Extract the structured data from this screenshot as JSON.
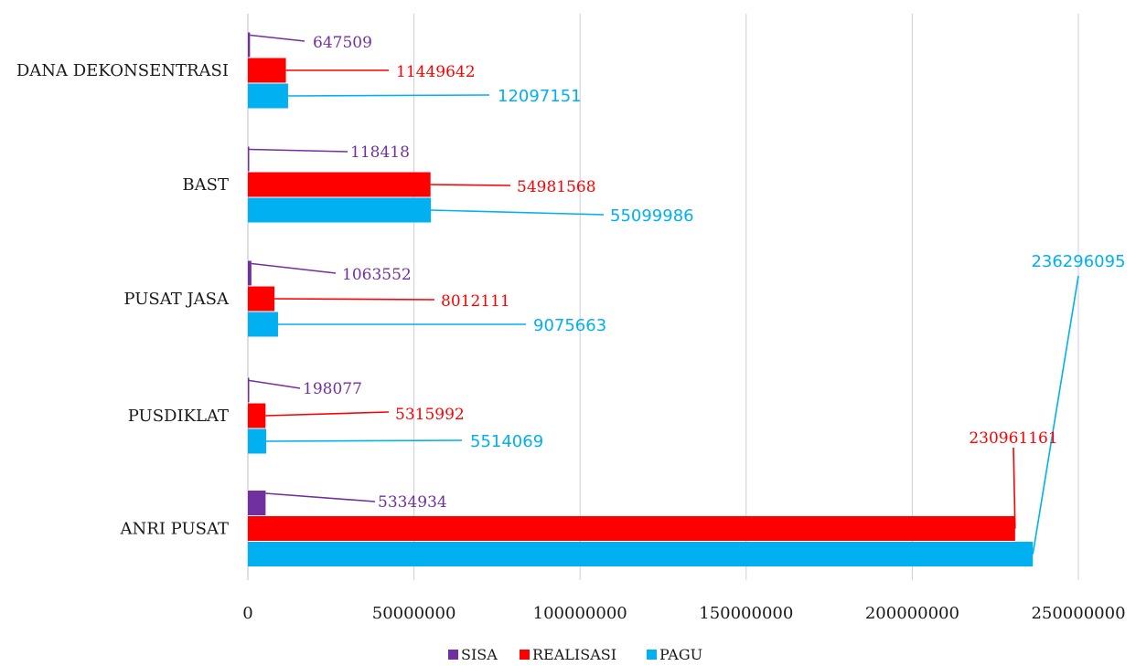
{
  "chart_data": {
    "type": "bar",
    "orientation": "horizontal",
    "categories": [
      "ANRI PUSAT",
      "PUSDIKLAT",
      "PUSAT JASA",
      "BAST",
      "DANA DEKONSENTRASI"
    ],
    "series": [
      {
        "name": "SISA",
        "color": "#7030A0",
        "values": [
          5334934,
          198077,
          1063552,
          118418,
          647509
        ],
        "labels": [
          "5334934",
          "198077",
          "1063552",
          "118418",
          "647509"
        ]
      },
      {
        "name": "REALISASI",
        "color": "#FF0000",
        "values": [
          230961161,
          5315992,
          8012111,
          54981568,
          11449642
        ],
        "labels": [
          "230961161",
          "5315992",
          "8012111",
          "54981568",
          "11449642"
        ]
      },
      {
        "name": "PAGU",
        "color": "#00B0F0",
        "values": [
          236296095,
          5514069,
          9075663,
          55099986,
          12097151
        ],
        "labels": [
          "236296095",
          "5514069",
          "9075663",
          "55099986",
          "12097151"
        ]
      }
    ],
    "xlim": [
      0,
      250000000
    ],
    "xticks": [
      "0",
      "50000000",
      "100000000",
      "150000000",
      "200000000",
      "250000000"
    ],
    "grid": true,
    "legend_position": "bottom"
  }
}
